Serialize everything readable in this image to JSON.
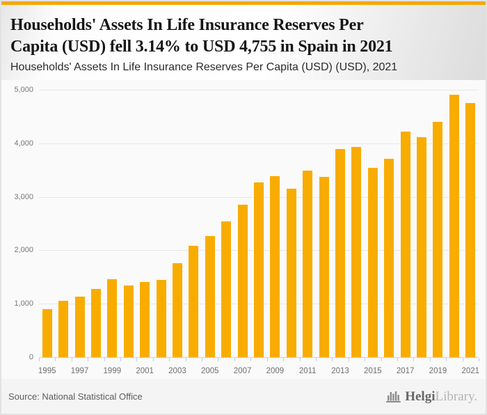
{
  "accent": {
    "topbar_color": "#F5A800",
    "bar_color": "#F9AC00"
  },
  "header": {
    "title": "Households' Assets In Life Insurance Reserves Per\nCapita (USD) fell 3.14% to USD 4,755 in Spain in 2021",
    "subtitle": "Households' Assets In Life Insurance Reserves Per Capita (USD) (USD), 2021"
  },
  "chart_data": {
    "type": "bar",
    "title": "Households' Assets In Life Insurance Reserves Per Capita (USD), Spain",
    "categories": [
      "1995",
      "1996",
      "1997",
      "1998",
      "1999",
      "2000",
      "2001",
      "2002",
      "2003",
      "2004",
      "2005",
      "2006",
      "2007",
      "2008",
      "2009",
      "2010",
      "2011",
      "2012",
      "2013",
      "2014",
      "2015",
      "2016",
      "2017",
      "2018",
      "2019",
      "2020",
      "2021"
    ],
    "values": [
      905,
      1060,
      1130,
      1275,
      1465,
      1335,
      1405,
      1445,
      1755,
      2085,
      2260,
      2540,
      2850,
      3270,
      3385,
      3145,
      3490,
      3370,
      3895,
      3930,
      3540,
      3710,
      4225,
      4110,
      4395,
      4909,
      4755
    ],
    "xlabel": "",
    "ylabel": "",
    "ylim": [
      0,
      5000
    ],
    "yticks": [
      0,
      1000,
      2000,
      3000,
      4000,
      5000
    ],
    "ytick_labels": [
      "0",
      "1,000",
      "2,000",
      "3,000",
      "4,000",
      "5,000"
    ],
    "xtick_step": 2,
    "grid": "horizontal",
    "legend": "none",
    "bar_color": "#F9AC00",
    "highlight_note": "2021 value 4,755 USD, -3.14% vs 2020 (4,909)"
  },
  "footer": {
    "source": "Source: National Statistical Office",
    "logo_text_primary": "Helgi",
    "logo_text_secondary": "Library."
  }
}
